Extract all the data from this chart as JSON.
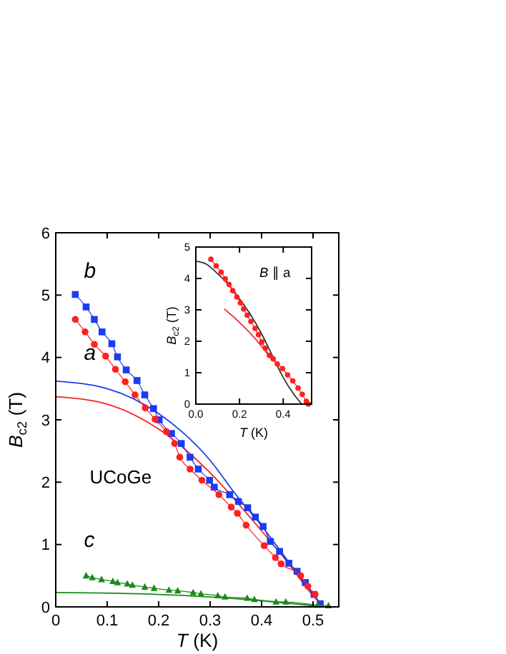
{
  "chart_data": [
    {
      "type": "line",
      "xlabel": "T (K)",
      "ylabel": "B$_{c2}$ (T)",
      "xlim": [
        0,
        0.55
      ],
      "ylim": [
        0,
        6
      ],
      "xticks": [
        0,
        {
          "value": 0.1,
          "label": "0.1"
        },
        {
          "value": 0.2,
          "label": "0.2"
        },
        {
          "value": 0.3,
          "label": "0.3"
        },
        {
          "value": 0.4,
          "label": "0.4"
        },
        {
          "value": 0.5,
          "label": "0.5"
        }
      ],
      "yticks": [
        0,
        1,
        2,
        3,
        4,
        5,
        6
      ],
      "grid": false,
      "annotations": [
        "b",
        "a",
        "c",
        "UCoGe"
      ],
      "series": [
        {
          "color": "#1a3cf0",
          "marker": "none",
          "x": [
            0,
            0.1,
            0.2,
            0.3,
            0.35,
            0.4,
            0.45,
            0.5,
            0.52
          ],
          "values": [
            3.62,
            3.5,
            3.1,
            2.35,
            1.8,
            1.3,
            0.75,
            0.2,
            0
          ]
        },
        {
          "color": "#ff2020",
          "marker": "none",
          "x": [
            0,
            0.1,
            0.2,
            0.3,
            0.35,
            0.4,
            0.45,
            0.5,
            0.52
          ],
          "values": [
            3.37,
            3.25,
            2.85,
            2.15,
            1.7,
            1.22,
            0.72,
            0.18,
            0
          ]
        },
        {
          "color": "#1a8a1a",
          "marker": "none",
          "x": [
            0,
            0.2,
            0.4,
            0.52
          ],
          "values": [
            0.23,
            0.2,
            0.1,
            0
          ]
        },
        {
          "color": "#1a3cf0",
          "marker": "square",
          "x": [
            0.038,
            0.059,
            0.075,
            0.09,
            0.109,
            0.12,
            0.137,
            0.158,
            0.173,
            0.19,
            0.201,
            0.225,
            0.244,
            0.261,
            0.277,
            0.299,
            0.308,
            0.338,
            0.355,
            0.373,
            0.388,
            0.403,
            0.417,
            0.435,
            0.453,
            0.469,
            0.485,
            0.502,
            0.514
          ],
          "values": [
            5.01,
            4.81,
            4.61,
            4.41,
            4.22,
            4.01,
            3.8,
            3.63,
            3.4,
            3.18,
            3.0,
            2.78,
            2.62,
            2.4,
            2.21,
            2.03,
            1.92,
            1.8,
            1.69,
            1.59,
            1.44,
            1.29,
            1.05,
            0.89,
            0.7,
            0.57,
            0.39,
            0.2,
            0.05
          ]
        },
        {
          "color": "#ff2020",
          "marker": "circle",
          "x": [
            0.038,
            0.057,
            0.075,
            0.097,
            0.116,
            0.135,
            0.154,
            0.174,
            0.193,
            0.215,
            0.231,
            0.241,
            0.261,
            0.284,
            0.317,
            0.341,
            0.353,
            0.37,
            0.405,
            0.427,
            0.438,
            0.476,
            0.49,
            0.504
          ],
          "values": [
            4.61,
            4.41,
            4.21,
            4.02,
            3.81,
            3.61,
            3.4,
            3.19,
            3.01,
            2.81,
            2.62,
            2.4,
            2.21,
            2.03,
            1.8,
            1.6,
            1.5,
            1.31,
            0.98,
            0.79,
            0.69,
            0.5,
            0.33,
            0.2
          ]
        },
        {
          "color": "#1a8a1a",
          "marker": "triangle",
          "x": [
            0.059,
            0.071,
            0.089,
            0.111,
            0.12,
            0.139,
            0.149,
            0.173,
            0.191,
            0.22,
            0.237,
            0.267,
            0.282,
            0.315,
            0.329,
            0.372,
            0.386,
            0.428,
            0.447,
            0.509,
            0.53
          ],
          "values": [
            0.5,
            0.47,
            0.44,
            0.41,
            0.39,
            0.37,
            0.35,
            0.32,
            0.3,
            0.27,
            0.26,
            0.23,
            0.21,
            0.18,
            0.16,
            0.14,
            0.12,
            0.08,
            0.08,
            0.03,
            0.02
          ]
        }
      ]
    },
    {
      "type": "line",
      "xlabel": "T (K)",
      "ylabel": "B$_{c2}$ (T)",
      "xlim": [
        0,
        0.53
      ],
      "ylim": [
        0,
        5
      ],
      "xticks": [
        {
          "value": 0,
          "label": "0.0"
        },
        {
          "value": 0.2,
          "label": "0.2"
        },
        {
          "value": 0.4,
          "label": "0.4"
        }
      ],
      "yticks": [
        0,
        1,
        2,
        3,
        4,
        5
      ],
      "grid": false,
      "annotations": [
        "B ∥ a"
      ],
      "series": [
        {
          "color": "#333333",
          "marker": "none",
          "x": [
            0,
            0.05,
            0.1,
            0.15,
            0.2,
            0.25,
            0.3,
            0.35,
            0.4,
            0.45,
            0.485
          ],
          "values": [
            4.55,
            4.45,
            4.15,
            3.8,
            3.35,
            2.85,
            2.25,
            1.55,
            0.85,
            0.3,
            0
          ]
        },
        {
          "color": "#ff2020",
          "marker": "none",
          "x": [
            0.13,
            0.2,
            0.25,
            0.3,
            0.35
          ],
          "values": [
            3.03,
            2.6,
            2.25,
            1.85,
            1.4
          ]
        },
        {
          "color": "#ff2020",
          "marker": "circle",
          "x": [
            0.069,
            0.093,
            0.116,
            0.135,
            0.152,
            0.169,
            0.188,
            0.204,
            0.219,
            0.235,
            0.252,
            0.271,
            0.287,
            0.302,
            0.318,
            0.337,
            0.354,
            0.373,
            0.397,
            0.42,
            0.444,
            0.468,
            0.487,
            0.506,
            0.515
          ],
          "values": [
            4.61,
            4.4,
            4.2,
            3.99,
            3.81,
            3.61,
            3.41,
            3.22,
            3.03,
            2.83,
            2.63,
            2.41,
            2.21,
            1.98,
            1.78,
            1.55,
            1.44,
            1.28,
            1.13,
            0.93,
            0.74,
            0.51,
            0.31,
            0.09,
            0
          ]
        }
      ]
    }
  ]
}
